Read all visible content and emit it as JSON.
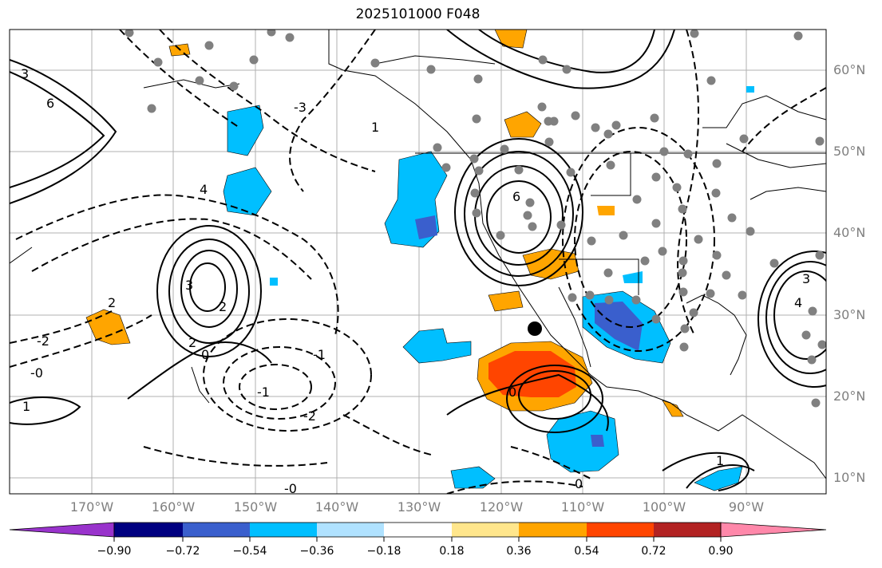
{
  "title": "2025101000 F048",
  "latitude_labels": [
    "60°N",
    "50°N",
    "40°N",
    "30°N",
    "20°N",
    "10°N"
  ],
  "longitude_labels": [
    "170°W",
    "160°W",
    "150°W",
    "140°W",
    "130°W",
    "120°W",
    "110°W",
    "100°W",
    "90°W"
  ],
  "colorbar": {
    "tick_labels": [
      "−0.90",
      "−0.72",
      "−0.54",
      "−0.36",
      "−0.18",
      "0.18",
      "0.36",
      "0.54",
      "0.72",
      "0.90"
    ],
    "colors": [
      "#9933cc",
      "#000080",
      "#3a5fcd",
      "#00bfff",
      "#b0e2ff",
      "#ffffff",
      "#ffe68c",
      "#ffa500",
      "#ff4500",
      "#b22222",
      "#ff88aa"
    ]
  },
  "contour_labels": {
    "positive": [
      "3",
      "2",
      "2",
      "2",
      "0",
      "1",
      "6",
      "4",
      "3",
      "6",
      "0",
      "1",
      "-0",
      "1",
      "3",
      "4"
    ],
    "negative": [
      "-2",
      "-2",
      "-1",
      "-1",
      "0",
      "-0",
      "-3"
    ]
  },
  "colors": {
    "land_outline": "#000000",
    "grid": "#b0b0b0",
    "station_dot": "#808080",
    "storm_marker": "#000000"
  }
}
